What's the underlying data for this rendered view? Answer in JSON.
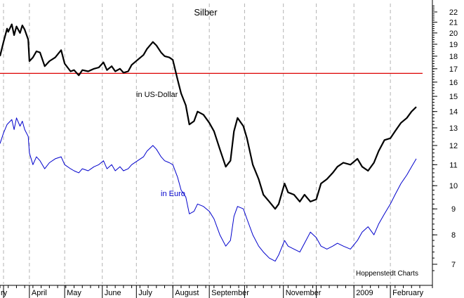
{
  "chart_data": {
    "type": "line",
    "title": "Silber",
    "credit": "Hoppenstedt Charts",
    "y_scale": "log",
    "y_ticks": [
      7,
      8,
      9,
      10,
      11,
      12,
      13,
      14,
      15,
      16,
      17,
      18,
      19,
      20,
      21,
      22
    ],
    "ylim": [
      6.6,
      22.8
    ],
    "x_tick_labels": [
      "ry",
      "April",
      "May",
      "June",
      "July",
      "August",
      "September",
      "November",
      "2009",
      "February"
    ],
    "x_domain": [
      "2008-03-07",
      "2009-02-27"
    ],
    "month_starts": [
      "2008-03-10",
      "2008-04-01",
      "2008-05-01",
      "2008-06-02",
      "2008-07-01",
      "2008-08-01",
      "2008-09-01",
      "2008-10-01",
      "2008-11-03",
      "2008-12-01",
      "2009-01-02",
      "2009-02-02"
    ],
    "reference_line": {
      "value": 16.65,
      "color": "#dd0000"
    },
    "series": [
      {
        "name": "in US-Dollar",
        "color": "#000000",
        "points": [
          [
            "2008-03-07",
            18.0
          ],
          [
            "2008-03-10",
            19.2
          ],
          [
            "2008-03-13",
            20.4
          ],
          [
            "2008-03-14",
            20.1
          ],
          [
            "2008-03-17",
            20.8
          ],
          [
            "2008-03-19",
            19.8
          ],
          [
            "2008-03-21",
            20.6
          ],
          [
            "2008-03-24",
            20.0
          ],
          [
            "2008-03-26",
            20.7
          ],
          [
            "2008-03-28",
            20.3
          ],
          [
            "2008-03-31",
            19.4
          ],
          [
            "2008-04-01",
            17.6
          ],
          [
            "2008-04-04",
            17.9
          ],
          [
            "2008-04-07",
            18.4
          ],
          [
            "2008-04-10",
            18.3
          ],
          [
            "2008-04-14",
            17.2
          ],
          [
            "2008-04-18",
            17.6
          ],
          [
            "2008-04-23",
            17.9
          ],
          [
            "2008-04-28",
            18.5
          ],
          [
            "2008-05-01",
            17.4
          ],
          [
            "2008-05-06",
            16.8
          ],
          [
            "2008-05-09",
            16.9
          ],
          [
            "2008-05-13",
            16.5
          ],
          [
            "2008-05-16",
            16.9
          ],
          [
            "2008-05-21",
            16.8
          ],
          [
            "2008-05-26",
            17.0
          ],
          [
            "2008-05-30",
            17.1
          ],
          [
            "2008-06-03",
            17.5
          ],
          [
            "2008-06-06",
            16.9
          ],
          [
            "2008-06-10",
            17.2
          ],
          [
            "2008-06-13",
            16.8
          ],
          [
            "2008-06-17",
            17.0
          ],
          [
            "2008-06-20",
            16.7
          ],
          [
            "2008-06-24",
            16.8
          ],
          [
            "2008-06-27",
            17.3
          ],
          [
            "2008-07-02",
            17.7
          ],
          [
            "2008-07-07",
            18.1
          ],
          [
            "2008-07-10",
            18.6
          ],
          [
            "2008-07-15",
            19.2
          ],
          [
            "2008-07-18",
            18.9
          ],
          [
            "2008-07-22",
            18.3
          ],
          [
            "2008-07-25",
            18.0
          ],
          [
            "2008-07-29",
            17.9
          ],
          [
            "2008-08-01",
            17.7
          ],
          [
            "2008-08-05",
            16.2
          ],
          [
            "2008-08-08",
            15.2
          ],
          [
            "2008-08-12",
            14.4
          ],
          [
            "2008-08-15",
            13.2
          ],
          [
            "2008-08-19",
            13.4
          ],
          [
            "2008-08-22",
            14.0
          ],
          [
            "2008-08-27",
            13.8
          ],
          [
            "2008-09-01",
            13.3
          ],
          [
            "2008-09-05",
            12.8
          ],
          [
            "2008-09-10",
            11.8
          ],
          [
            "2008-09-15",
            10.9
          ],
          [
            "2008-09-19",
            11.2
          ],
          [
            "2008-09-22",
            12.8
          ],
          [
            "2008-09-25",
            13.6
          ],
          [
            "2008-09-30",
            13.1
          ],
          [
            "2008-10-03",
            12.4
          ],
          [
            "2008-10-08",
            11.0
          ],
          [
            "2008-10-13",
            10.3
          ],
          [
            "2008-10-17",
            9.6
          ],
          [
            "2008-10-22",
            9.3
          ],
          [
            "2008-10-27",
            9.0
          ],
          [
            "2008-10-30",
            9.2
          ],
          [
            "2008-11-04",
            10.1
          ],
          [
            "2008-11-07",
            9.7
          ],
          [
            "2008-11-12",
            9.6
          ],
          [
            "2008-11-17",
            9.3
          ],
          [
            "2008-11-21",
            9.6
          ],
          [
            "2008-11-26",
            9.3
          ],
          [
            "2008-12-01",
            9.4
          ],
          [
            "2008-12-05",
            10.1
          ],
          [
            "2008-12-10",
            10.3
          ],
          [
            "2008-12-15",
            10.6
          ],
          [
            "2008-12-19",
            10.9
          ],
          [
            "2008-12-24",
            11.1
          ],
          [
            "2008-12-30",
            11.0
          ],
          [
            "2009-01-05",
            11.3
          ],
          [
            "2009-01-09",
            10.9
          ],
          [
            "2009-01-14",
            10.7
          ],
          [
            "2009-01-19",
            11.1
          ],
          [
            "2009-01-23",
            11.7
          ],
          [
            "2009-01-28",
            12.3
          ],
          [
            "2009-02-02",
            12.4
          ],
          [
            "2009-02-06",
            12.8
          ],
          [
            "2009-02-11",
            13.3
          ],
          [
            "2009-02-16",
            13.6
          ],
          [
            "2009-02-20",
            14.0
          ],
          [
            "2009-02-24",
            14.3
          ]
        ]
      },
      {
        "name": "in Euro",
        "color": "#0000cc",
        "points": [
          [
            "2008-03-07",
            12.1
          ],
          [
            "2008-03-10",
            12.7
          ],
          [
            "2008-03-13",
            13.2
          ],
          [
            "2008-03-17",
            13.5
          ],
          [
            "2008-03-19",
            12.9
          ],
          [
            "2008-03-21",
            13.6
          ],
          [
            "2008-03-24",
            13.1
          ],
          [
            "2008-03-26",
            13.4
          ],
          [
            "2008-03-28",
            12.9
          ],
          [
            "2008-03-31",
            12.5
          ],
          [
            "2008-04-01",
            11.6
          ],
          [
            "2008-04-04",
            11.0
          ],
          [
            "2008-04-07",
            11.4
          ],
          [
            "2008-04-10",
            11.2
          ],
          [
            "2008-04-14",
            10.8
          ],
          [
            "2008-04-18",
            11.1
          ],
          [
            "2008-04-23",
            11.3
          ],
          [
            "2008-04-28",
            11.4
          ],
          [
            "2008-05-01",
            11.0
          ],
          [
            "2008-05-06",
            10.8
          ],
          [
            "2008-05-09",
            10.7
          ],
          [
            "2008-05-13",
            10.6
          ],
          [
            "2008-05-16",
            10.8
          ],
          [
            "2008-05-21",
            10.7
          ],
          [
            "2008-05-26",
            10.9
          ],
          [
            "2008-05-30",
            11.0
          ],
          [
            "2008-06-03",
            11.2
          ],
          [
            "2008-06-06",
            10.8
          ],
          [
            "2008-06-10",
            11.0
          ],
          [
            "2008-06-13",
            10.7
          ],
          [
            "2008-06-17",
            10.9
          ],
          [
            "2008-06-20",
            10.7
          ],
          [
            "2008-06-24",
            10.8
          ],
          [
            "2008-06-27",
            11.0
          ],
          [
            "2008-07-02",
            11.2
          ],
          [
            "2008-07-07",
            11.4
          ],
          [
            "2008-07-10",
            11.7
          ],
          [
            "2008-07-15",
            12.0
          ],
          [
            "2008-07-18",
            11.8
          ],
          [
            "2008-07-22",
            11.4
          ],
          [
            "2008-07-25",
            11.2
          ],
          [
            "2008-07-29",
            11.1
          ],
          [
            "2008-08-01",
            11.0
          ],
          [
            "2008-08-05",
            10.4
          ],
          [
            "2008-08-08",
            9.8
          ],
          [
            "2008-08-12",
            9.5
          ],
          [
            "2008-08-15",
            8.8
          ],
          [
            "2008-08-19",
            8.9
          ],
          [
            "2008-08-22",
            9.2
          ],
          [
            "2008-08-27",
            9.1
          ],
          [
            "2008-09-01",
            8.9
          ],
          [
            "2008-09-05",
            8.6
          ],
          [
            "2008-09-10",
            8.0
          ],
          [
            "2008-09-15",
            7.6
          ],
          [
            "2008-09-19",
            7.8
          ],
          [
            "2008-09-22",
            8.7
          ],
          [
            "2008-09-25",
            9.1
          ],
          [
            "2008-09-30",
            9.0
          ],
          [
            "2008-10-03",
            8.6
          ],
          [
            "2008-10-08",
            8.0
          ],
          [
            "2008-10-13",
            7.6
          ],
          [
            "2008-10-17",
            7.4
          ],
          [
            "2008-10-22",
            7.2
          ],
          [
            "2008-10-27",
            7.1
          ],
          [
            "2008-10-30",
            7.3
          ],
          [
            "2008-11-04",
            7.8
          ],
          [
            "2008-11-07",
            7.6
          ],
          [
            "2008-11-12",
            7.5
          ],
          [
            "2008-11-17",
            7.4
          ],
          [
            "2008-11-21",
            7.7
          ],
          [
            "2008-11-26",
            8.1
          ],
          [
            "2008-12-01",
            7.9
          ],
          [
            "2008-12-05",
            7.6
          ],
          [
            "2008-12-10",
            7.5
          ],
          [
            "2008-12-15",
            7.6
          ],
          [
            "2008-12-19",
            7.7
          ],
          [
            "2008-12-24",
            7.6
          ],
          [
            "2008-12-30",
            7.5
          ],
          [
            "2009-01-05",
            7.8
          ],
          [
            "2009-01-09",
            8.1
          ],
          [
            "2009-01-14",
            8.3
          ],
          [
            "2009-01-19",
            8.0
          ],
          [
            "2009-01-23",
            8.4
          ],
          [
            "2009-01-28",
            8.8
          ],
          [
            "2009-02-02",
            9.2
          ],
          [
            "2009-02-06",
            9.6
          ],
          [
            "2009-02-11",
            10.1
          ],
          [
            "2009-02-16",
            10.5
          ],
          [
            "2009-02-20",
            10.9
          ],
          [
            "2009-02-24",
            11.3
          ]
        ]
      }
    ]
  }
}
